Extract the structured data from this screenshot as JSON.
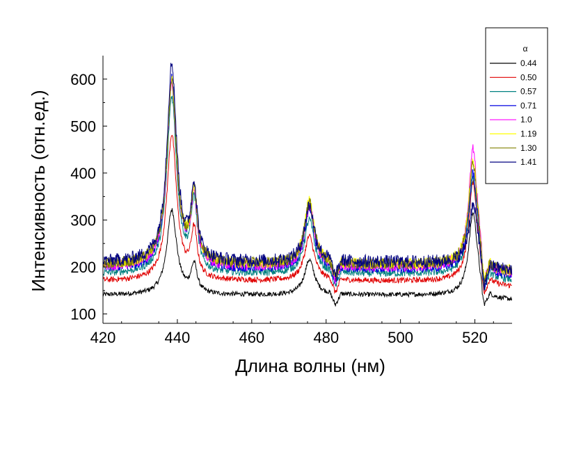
{
  "chart_data": {
    "type": "line",
    "xlabel": "Длина волны (нм)",
    "ylabel": "Интенсивность (отн.ед.)",
    "xlim": [
      420,
      530
    ],
    "ylim": [
      80,
      650
    ],
    "xticks": [
      420,
      440,
      460,
      480,
      500,
      520
    ],
    "yticks": [
      100,
      200,
      300,
      400,
      500,
      600
    ],
    "grid": false,
    "legend_position": "top-right",
    "legend_title": "α",
    "series": [
      {
        "name": "0.44",
        "color": "#000000",
        "baseline": 140,
        "peaks": [
          [
            438.5,
            320
          ],
          [
            444.5,
            200
          ],
          [
            475.5,
            215
          ],
          [
            519.5,
            315
          ]
        ],
        "noise": 5
      },
      {
        "name": "0.50",
        "color": "#e00000",
        "baseline": 170,
        "peaks": [
          [
            438.5,
            480
          ],
          [
            444.5,
            270
          ],
          [
            475.5,
            265
          ],
          [
            519.5,
            380
          ]
        ],
        "noise": 6
      },
      {
        "name": "0.57",
        "color": "#008080",
        "baseline": 185,
        "peaks": [
          [
            438.5,
            560
          ],
          [
            444.5,
            330
          ],
          [
            475.5,
            300
          ],
          [
            519.5,
            390
          ]
        ],
        "noise": 8
      },
      {
        "name": "0.71",
        "color": "#0000e0",
        "baseline": 195,
        "peaks": [
          [
            438.5,
            600
          ],
          [
            444.5,
            350
          ],
          [
            475.5,
            320
          ],
          [
            519.5,
            400
          ]
        ],
        "noise": 10
      },
      {
        "name": "1.0",
        "color": "#ff00ff",
        "baseline": 200,
        "peaks": [
          [
            438.5,
            590
          ],
          [
            444.5,
            345
          ],
          [
            475.5,
            330
          ],
          [
            519.5,
            450
          ]
        ],
        "noise": 12
      },
      {
        "name": "1.19",
        "color": "#ffff00",
        "baseline": 205,
        "peaks": [
          [
            438.5,
            595
          ],
          [
            444.5,
            350
          ],
          [
            475.5,
            340
          ],
          [
            519.5,
            430
          ]
        ],
        "noise": 12
      },
      {
        "name": "1.30",
        "color": "#808000",
        "baseline": 205,
        "peaks": [
          [
            438.5,
            590
          ],
          [
            444.5,
            350
          ],
          [
            475.5,
            335
          ],
          [
            519.5,
            420
          ]
        ],
        "noise": 12
      },
      {
        "name": "1.41",
        "color": "#000080",
        "baseline": 210,
        "peaks": [
          [
            438.5,
            630
          ],
          [
            444.5,
            360
          ],
          [
            475.5,
            330
          ],
          [
            519.5,
            330
          ]
        ],
        "noise": 14
      }
    ]
  }
}
